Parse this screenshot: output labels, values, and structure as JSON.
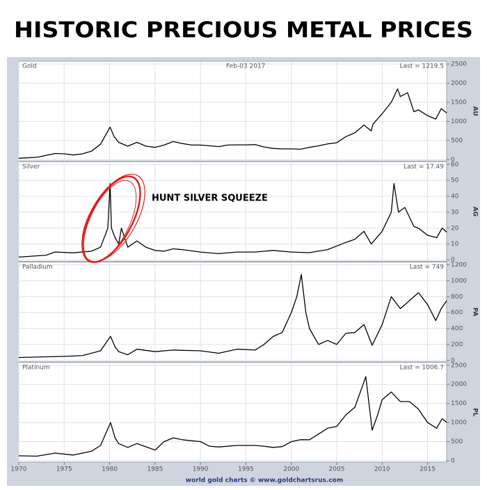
{
  "title": "HISTORIC PRECIOUS METAL PRICES",
  "source": "world gold charts © www.goldchartsrus.com",
  "chart_data": [
    {
      "type": "line",
      "title": "Gold",
      "subtitle": "Feb-03 2017",
      "last_label": "Last = 1219.5",
      "y_label": "AU",
      "color": "#000000",
      "xlim": [
        1970,
        2017.1
      ],
      "ylim": [
        0,
        2500
      ],
      "yticks": [
        0,
        500,
        1000,
        1500,
        2000,
        2500
      ],
      "grid": true,
      "x": [
        1970,
        1972,
        1974,
        1975,
        1976,
        1977,
        1978,
        1979,
        1980.05,
        1980.5,
        1981,
        1982,
        1983,
        1984,
        1985,
        1986,
        1987,
        1988,
        1989,
        1990,
        1991,
        1992,
        1993,
        1994,
        1995,
        1996,
        1997,
        1998,
        1999,
        2000,
        2001,
        2002,
        2003,
        2004,
        2005,
        2006,
        2007,
        2008,
        2008.8,
        2009,
        2010,
        2011,
        2011.7,
        2012,
        2012.8,
        2013.5,
        2014,
        2015,
        2015.9,
        2016.5,
        2017.1
      ],
      "values": [
        35,
        60,
        160,
        150,
        120,
        150,
        220,
        400,
        850,
        600,
        450,
        350,
        450,
        350,
        320,
        380,
        470,
        420,
        380,
        380,
        360,
        340,
        380,
        385,
        385,
        390,
        330,
        290,
        280,
        280,
        270,
        320,
        360,
        410,
        440,
        600,
        700,
        900,
        750,
        930,
        1200,
        1500,
        1850,
        1650,
        1750,
        1250,
        1300,
        1150,
        1060,
        1330,
        1219.5
      ]
    },
    {
      "type": "line",
      "title": "Silver",
      "last_label": "Last = 17.49",
      "y_label": "AG",
      "annotation": "HUNT SILVER SQUEEZE",
      "color": "#000000",
      "xlim": [
        1970,
        2017.1
      ],
      "ylim": [
        0,
        60
      ],
      "yticks": [
        0,
        10,
        20,
        30,
        40,
        50,
        60
      ],
      "grid": true,
      "x": [
        1970,
        1973,
        1974,
        1976,
        1978,
        1979,
        1979.8,
        1980.05,
        1980.2,
        1980.6,
        1981,
        1981.3,
        1982,
        1983,
        1984,
        1985,
        1986,
        1987,
        1988,
        1990,
        1992,
        1994,
        1996,
        1998,
        2000,
        2002,
        2004,
        2006,
        2007,
        2008,
        2008.8,
        2010,
        2011,
        2011.3,
        2011.8,
        2012.5,
        2013.5,
        2014,
        2015,
        2016,
        2016.6,
        2017.1
      ],
      "values": [
        1.8,
        3,
        5,
        4.5,
        5.5,
        8,
        20,
        48,
        20,
        14,
        10,
        20,
        8,
        12,
        8,
        6,
        5.5,
        7,
        6.5,
        5,
        4,
        5,
        5,
        6,
        5,
        4.6,
        6.5,
        11,
        13,
        18,
        10,
        18,
        30,
        48,
        30,
        33,
        21,
        20,
        15.5,
        14,
        20,
        17.49
      ]
    },
    {
      "type": "line",
      "title": "Palladium",
      "last_label": "Last = 749",
      "y_label": "PA",
      "color": "#000000",
      "xlim": [
        1970,
        2017.1
      ],
      "ylim": [
        0,
        1200
      ],
      "yticks": [
        0,
        200,
        400,
        600,
        800,
        1000,
        1200
      ],
      "grid": true,
      "x": [
        1970,
        1975,
        1977,
        1979,
        1980.1,
        1980.6,
        1981,
        1982,
        1983,
        1985,
        1987,
        1990,
        1992,
        1994,
        1996,
        1997,
        1998,
        1999,
        2000,
        2000.6,
        2001.1,
        2001.6,
        2002,
        2003,
        2004,
        2005,
        2006,
        2007,
        2008,
        2008.9,
        2010,
        2011,
        2012,
        2013,
        2014,
        2015,
        2015.9,
        2016.5,
        2017.1
      ],
      "values": [
        36,
        50,
        60,
        120,
        300,
        170,
        110,
        70,
        140,
        110,
        130,
        120,
        90,
        140,
        130,
        200,
        300,
        350,
        600,
        800,
        1080,
        600,
        400,
        200,
        250,
        200,
        340,
        350,
        450,
        190,
        450,
        800,
        650,
        750,
        850,
        700,
        500,
        650,
        749
      ]
    },
    {
      "type": "line",
      "title": "Platinum",
      "last_label": "Last = 1006.7",
      "y_label": "PL",
      "color": "#000000",
      "xlim": [
        1970,
        2017.1
      ],
      "ylim": [
        0,
        2500
      ],
      "yticks": [
        0,
        500,
        1000,
        1500,
        2000,
        2500
      ],
      "grid": true,
      "xticks": [
        1970,
        1975,
        1980,
        1985,
        1990,
        1995,
        2000,
        2005,
        2010,
        2015
      ],
      "x": [
        1970,
        1972,
        1974,
        1976,
        1978,
        1979,
        1980.1,
        1980.6,
        1981,
        1982,
        1983,
        1985,
        1986,
        1987,
        1988,
        1990,
        1991,
        1992,
        1994,
        1996,
        1997,
        1998,
        1999,
        2000,
        2001,
        2002,
        2003,
        2004,
        2005,
        2006,
        2007,
        2008.2,
        2008.9,
        2009.5,
        2010,
        2011,
        2012,
        2013,
        2014,
        2015,
        2016,
        2016.6,
        2017.1
      ],
      "values": [
        130,
        120,
        200,
        150,
        250,
        400,
        1000,
        600,
        450,
        350,
        450,
        280,
        500,
        600,
        550,
        500,
        380,
        360,
        400,
        400,
        380,
        350,
        370,
        500,
        550,
        550,
        700,
        850,
        900,
        1200,
        1400,
        2200,
        800,
        1200,
        1600,
        1800,
        1550,
        1550,
        1350,
        1000,
        850,
        1100,
        1006.7
      ]
    }
  ]
}
